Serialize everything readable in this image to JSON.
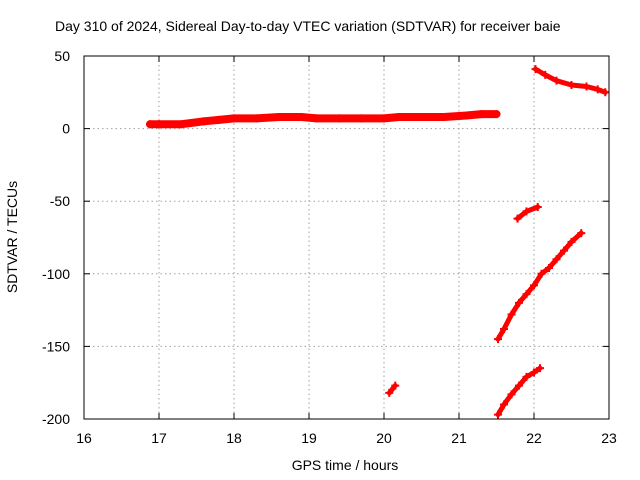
{
  "chart_data": {
    "type": "line",
    "title": "Day 310 of 2024, Sidereal Day-to-day VTEC variation (SDTVAR) for receiver baie",
    "xlabel": "GPS time / hours",
    "ylabel": "SDTVAR / TECUs",
    "xlim": [
      16,
      23
    ],
    "ylim": [
      -200,
      50
    ],
    "xticks": [
      16,
      17,
      18,
      19,
      20,
      21,
      22,
      23
    ],
    "yticks": [
      50,
      0,
      -50,
      -100,
      -150,
      -200
    ],
    "grid": true,
    "legend": "none",
    "series_color": "#ff0000",
    "series": [
      {
        "x": [
          16.88,
          17.0,
          17.3,
          17.6,
          17.8,
          18.0,
          18.3,
          18.6,
          18.9,
          19.1,
          19.4,
          19.7,
          20.0,
          20.2,
          20.5,
          20.8,
          21.1,
          21.3,
          21.5
        ],
        "y": [
          3,
          3,
          3,
          5,
          6,
          7,
          7,
          8,
          8,
          7,
          7,
          7,
          7,
          8,
          8,
          8,
          9,
          10,
          10
        ]
      },
      {
        "x": [
          22.02,
          22.15,
          22.3,
          22.5,
          22.7,
          22.85,
          22.95
        ],
        "y": [
          41,
          37,
          33,
          30,
          29,
          27,
          25
        ]
      },
      {
        "x": [
          21.78,
          21.9,
          22.05
        ],
        "y": [
          -62,
          -57,
          -54
        ]
      },
      {
        "x": [
          21.52,
          21.6,
          21.7,
          21.8,
          21.9,
          22.0,
          22.1,
          22.2,
          22.3,
          22.4,
          22.5,
          22.63
        ],
        "y": [
          -145,
          -138,
          -128,
          -120,
          -114,
          -108,
          -100,
          -96,
          -90,
          -84,
          -78,
          -72
        ]
      },
      {
        "x": [
          20.07,
          20.15
        ],
        "y": [
          -182,
          -177
        ]
      },
      {
        "x": [
          21.52,
          21.6,
          21.7,
          21.8,
          21.9,
          22.0,
          22.08
        ],
        "y": [
          -197,
          -190,
          -183,
          -177,
          -171,
          -168,
          -165
        ]
      }
    ]
  }
}
